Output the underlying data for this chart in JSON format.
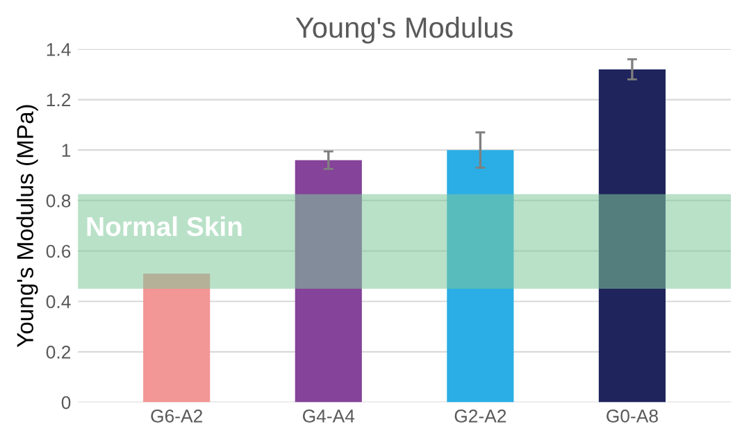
{
  "chart_data": {
    "type": "bar",
    "title": "Young's Modulus",
    "ylabel": "Young's Modulus (MPa)",
    "categories": [
      "G6-A2",
      "G4-A4",
      "G2-A2",
      "G0-A8"
    ],
    "values": [
      0.51,
      0.96,
      1.0,
      1.32
    ],
    "errors": [
      null,
      0.035,
      0.07,
      0.04
    ],
    "colors": [
      "#f39696",
      "#854399",
      "#2aaee5",
      "#1f245c"
    ],
    "ylim": [
      0,
      1.4
    ],
    "yticks": [
      0,
      0.2,
      0.4,
      0.6,
      0.8,
      1,
      1.2,
      1.4
    ],
    "grid": "y",
    "bands": [
      {
        "axis": "y",
        "from": 0.45,
        "to": 0.825,
        "label": "Normal Skin",
        "color": "#7fc99a"
      }
    ]
  }
}
